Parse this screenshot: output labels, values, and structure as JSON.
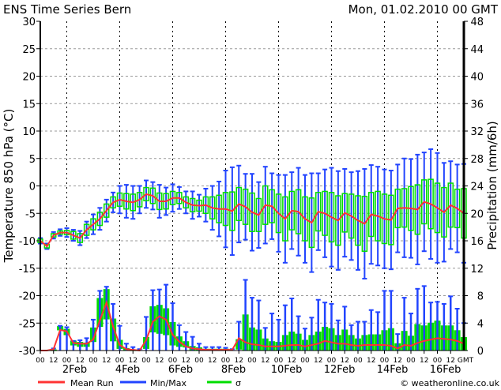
{
  "chart_data": {
    "type": "box-line",
    "title": "ENS Time Series Bern",
    "date": "Mon, 01.02.2010 00 GMT",
    "ylabel_left": "Temperature 850 hPa (°C)",
    "ylabel_right": "Precipitation (mm/6h)",
    "ylim_left": [
      -30,
      30
    ],
    "ylim_right": [
      0,
      48
    ],
    "yticks_left": [
      "30",
      "25",
      "20",
      "15",
      "10",
      "5",
      "0",
      "-5",
      "-10",
      "-15",
      "-20",
      "-25",
      "-30"
    ],
    "yticks_right": [
      "48",
      "44",
      "40",
      "36",
      "32",
      "28",
      "24",
      "20",
      "16",
      "12",
      "8",
      "4",
      "0"
    ],
    "hour_labels": [
      "00",
      "12"
    ],
    "hour_label_days": 16,
    "gmt_label": "GMT",
    "date_labels": [
      "2Feb",
      "4Feb",
      "6Feb",
      "8Feb",
      "10Feb",
      "12Feb",
      "14Feb",
      "16Feb"
    ],
    "step_hours": 6,
    "days_total": 16,
    "grid": true,
    "legend": {
      "placement": "bottom",
      "items": [
        {
          "label": "Mean Run",
          "color": "#ff3333"
        },
        {
          "label": "Min/Max",
          "color": "#2244ff"
        },
        {
          "label": "σ",
          "color": "#00dd00"
        }
      ]
    },
    "copyright": "© weatheronline.co.uk",
    "temperature": {
      "mean": [
        -10,
        -11,
        -9,
        -8.5,
        -8.5,
        -9,
        -9.5,
        -8,
        -7,
        -6,
        -4.5,
        -3,
        -2.5,
        -2.8,
        -3,
        -2.5,
        -1.5,
        -1.8,
        -2.8,
        -2.8,
        -2.2,
        -2.2,
        -3,
        -3.5,
        -3.6,
        -3.5,
        -4,
        -4.2,
        -4.2,
        -4.6,
        -3.3,
        -3.8,
        -4.8,
        -5.3,
        -3.5,
        -3.7,
        -5,
        -6,
        -4.5,
        -4.7,
        -6,
        -6.7,
        -4.7,
        -5,
        -5.7,
        -6.3,
        -4.9,
        -5.5,
        -6.3,
        -6.9,
        -5.2,
        -5.5,
        -6,
        -6.2,
        -4.1,
        -4,
        -4.1,
        -4.3,
        -2.9,
        -3.3,
        -4,
        -4.8,
        -3.5,
        -4.1,
        -5
      ],
      "sigma_half": [
        0.3,
        0.3,
        0.3,
        0.3,
        0.4,
        0.7,
        0.8,
        1,
        1,
        1.2,
        1.2,
        1,
        1.2,
        1.4,
        1.5,
        1.3,
        1.2,
        1.4,
        1.5,
        1.4,
        1.2,
        1,
        1,
        1.2,
        1,
        1.5,
        2,
        2.5,
        3,
        3.5,
        3,
        3.2,
        3.5,
        3,
        3.5,
        3,
        3.5,
        4,
        3.5,
        4,
        4,
        4.5,
        3.5,
        4,
        4.5,
        4.5,
        3.5,
        4,
        4.5,
        5,
        4,
        4.5,
        4.5,
        4.5,
        3.5,
        3.5,
        4,
        4.5,
        4,
        4.5,
        4.5,
        4.5,
        4,
        3.5,
        4.5
      ],
      "range_half": [
        0.5,
        0.5,
        0.6,
        0.6,
        0.8,
        1,
        1.3,
        1.5,
        1.8,
        2,
        2,
        1.8,
        2.5,
        3,
        3,
        2.5,
        2.5,
        2.5,
        3,
        2.5,
        2.5,
        2,
        2,
        2.5,
        2,
        3,
        4,
        5,
        7,
        8,
        7,
        6,
        7,
        6,
        7,
        6,
        7,
        8,
        7,
        8,
        8,
        9,
        7,
        8,
        9,
        9,
        8,
        8,
        9,
        10,
        9,
        9,
        9,
        9,
        8,
        9,
        9,
        10,
        9,
        10,
        10,
        9,
        8,
        8,
        9
      ]
    },
    "precipitation": {
      "mean": [
        0,
        0,
        0.2,
        3.0,
        2.8,
        1.1,
        1.0,
        1.0,
        1.6,
        4.4,
        7.0,
        3.5,
        0.8,
        0.2,
        0.1,
        0,
        1.5,
        4.2,
        5.0,
        4.5,
        2.3,
        1.3,
        0.6,
        0.3,
        0.2,
        0.1,
        0.1,
        0.1,
        0.1,
        0.1,
        1.8,
        1.2,
        0.9,
        0.8,
        0.6,
        0.6,
        0.6,
        0.7,
        0.8,
        0.8,
        0.6,
        0.8,
        1.0,
        1.4,
        1.2,
        1.0,
        1.0,
        0.8,
        0.7,
        0.8,
        0.8,
        0.8,
        0.8,
        0.7,
        0.3,
        0.8,
        0.7,
        1.1,
        1.4,
        1.6,
        1.8,
        1.7,
        1.6,
        1.4,
        1.0
      ],
      "sigma_high": [
        0,
        0,
        0.1,
        3.5,
        3.1,
        1.4,
        1.2,
        1.1,
        3.3,
        7.6,
        8.9,
        4.6,
        1.5,
        0.3,
        0.1,
        0,
        1.9,
        6.4,
        6.6,
        6.1,
        4.1,
        2.0,
        1.3,
        0.6,
        0.4,
        0.2,
        0.2,
        0.2,
        0.2,
        0,
        1.6,
        5.2,
        3.3,
        3.0,
        1.7,
        1.3,
        1.2,
        2.2,
        2.7,
        2.4,
        1.5,
        2.2,
        2.7,
        3.4,
        3.2,
        2.2,
        3.0,
        2.2,
        1.7,
        2.2,
        2.3,
        2.3,
        2.9,
        3.2,
        1.0,
        2.8,
        2.1,
        3.8,
        3.6,
        4.0,
        4.3,
        3.6,
        3.6,
        2.9,
        1.9
      ],
      "sigma_low": [
        0,
        0,
        0,
        3.0,
        2.3,
        0.8,
        0.6,
        0.6,
        1.3,
        3.5,
        4.6,
        1.4,
        0.3,
        0,
        0,
        0,
        0.3,
        2.7,
        2.5,
        2.3,
        0.8,
        0.6,
        0.5,
        0,
        0,
        0,
        0,
        0,
        0,
        0,
        0.2,
        0.1,
        0.1,
        0.1,
        0.1,
        0.1,
        0.1,
        0.1,
        0.1,
        0.1,
        0.1,
        0.1,
        0.1,
        0.1,
        0.1,
        0.1,
        0.1,
        0.1,
        0.1,
        0.1,
        0.1,
        0.1,
        0.1,
        0.1,
        0.1,
        0.1,
        0.1,
        0.1,
        0.1,
        0.1,
        0.1,
        0.1,
        0.1,
        0.1,
        0.1
      ],
      "max": [
        0,
        0,
        0.3,
        3.6,
        3.4,
        1.4,
        1.5,
        1.8,
        4.5,
        8.7,
        9.3,
        6.8,
        3.6,
        1.0,
        0.5,
        0.2,
        4.9,
        8.8,
        8.9,
        9.6,
        6.9,
        3.7,
        2.7,
        2.0,
        1.0,
        0.5,
        0.5,
        0.5,
        0.4,
        0.2,
        4.2,
        10.3,
        7.7,
        7.3,
        3.3,
        5.4,
        4.5,
        6.6,
        7.6,
        5.0,
        3.2,
        4.8,
        7.4,
        7.0,
        6.8,
        4.4,
        6.4,
        3.7,
        4.2,
        4.2,
        5.9,
        5.6,
        8.7,
        8.7,
        2.4,
        7.7,
        5.4,
        9.0,
        9.4,
        7.0,
        7.1,
        6.8,
        7.9,
        6.1,
        4.0
      ]
    }
  }
}
